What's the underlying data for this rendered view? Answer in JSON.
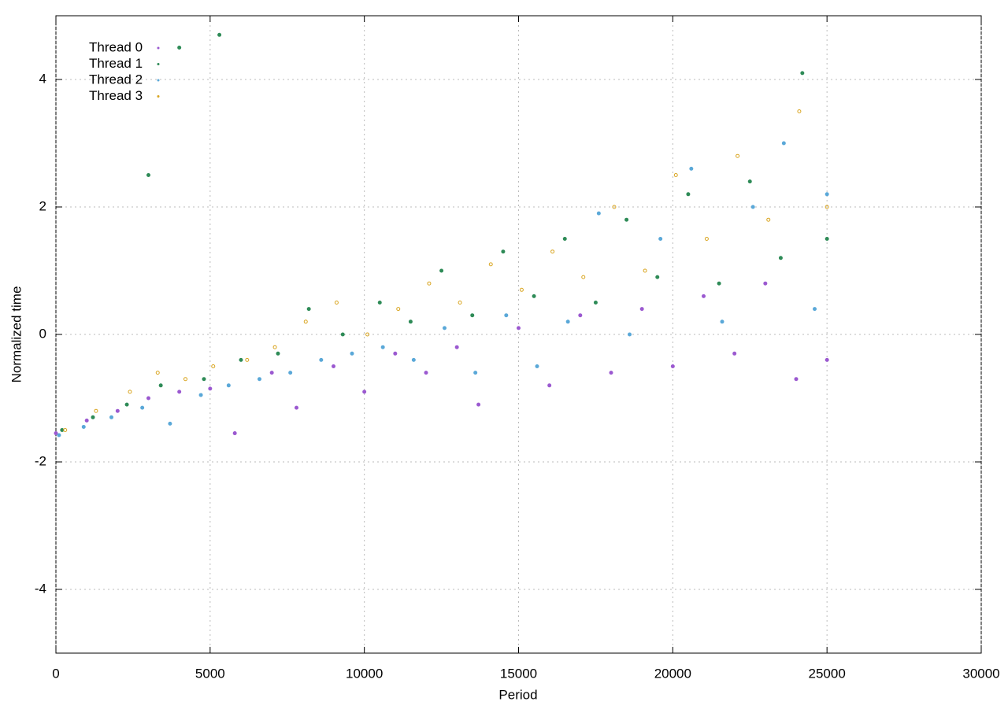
{
  "chart_data": {
    "type": "scatter",
    "xlabel": "Period",
    "ylabel": "Normalized time",
    "xlim": [
      0,
      30000
    ],
    "ylim": [
      -5,
      5
    ],
    "xticks": [
      0,
      5000,
      10000,
      15000,
      20000,
      25000,
      30000
    ],
    "yticks": [
      -4,
      -2,
      0,
      2,
      4
    ],
    "grid": true,
    "legend": "top-left",
    "series": [
      {
        "name": "Thread 0",
        "color": "#9b59d0",
        "x": [
          0,
          1000,
          2000,
          3000,
          4000,
          5000,
          5800,
          7000,
          7800,
          9000,
          10000,
          11000,
          12000,
          13000,
          13700,
          15000,
          16000,
          17000,
          18000,
          19000,
          20000,
          21000,
          22000,
          23000,
          24000,
          25000
        ],
        "values": [
          -1.55,
          -1.35,
          -1.2,
          -1.0,
          -0.9,
          -0.85,
          -1.55,
          -0.6,
          -1.15,
          -0.5,
          -0.9,
          -0.3,
          -0.6,
          -0.2,
          -1.1,
          0.1,
          -0.8,
          0.3,
          -0.6,
          0.4,
          -0.5,
          0.6,
          -0.3,
          0.8,
          -0.7,
          -0.4
        ]
      },
      {
        "name": "Thread 1",
        "color": "#2e8b57",
        "x": [
          200,
          1200,
          2300,
          3000,
          3400,
          4000,
          4800,
          5300,
          6000,
          7200,
          8200,
          9300,
          10500,
          11500,
          12500,
          13500,
          14500,
          15500,
          16500,
          17500,
          18500,
          19500,
          20500,
          21500,
          22500,
          23500,
          24200,
          25000
        ],
        "values": [
          -1.5,
          -1.3,
          -1.1,
          2.5,
          -0.8,
          4.5,
          -0.7,
          4.7,
          -0.4,
          -0.3,
          0.4,
          0.0,
          0.5,
          0.2,
          1.0,
          0.3,
          1.3,
          0.6,
          1.5,
          0.5,
          1.8,
          0.9,
          2.2,
          0.8,
          2.4,
          1.2,
          4.1,
          1.5
        ]
      },
      {
        "name": "Thread 2",
        "color": "#5aa8d8",
        "x": [
          100,
          900,
          1800,
          2800,
          3700,
          4700,
          5600,
          6600,
          7600,
          8600,
          9600,
          10600,
          11600,
          12600,
          13600,
          14600,
          15600,
          16600,
          17600,
          18600,
          19600,
          20600,
          21600,
          22600,
          23600,
          24600,
          25000
        ],
        "values": [
          -1.58,
          -1.45,
          -1.3,
          -1.15,
          -1.4,
          -0.95,
          -0.8,
          -0.7,
          -0.6,
          -0.4,
          -0.3,
          -0.2,
          -0.4,
          0.1,
          -0.6,
          0.3,
          -0.5,
          0.2,
          1.9,
          0.0,
          1.5,
          2.6,
          0.2,
          2.0,
          3.0,
          0.4,
          2.2
        ]
      },
      {
        "name": "Thread 3",
        "color": "#d9a520",
        "x": [
          300,
          1300,
          2400,
          3300,
          4200,
          5100,
          6200,
          7100,
          8100,
          9100,
          10100,
          11100,
          12100,
          13100,
          14100,
          15100,
          16100,
          17100,
          18100,
          19100,
          20100,
          21100,
          22100,
          23100,
          24100,
          25000
        ],
        "values": [
          -1.5,
          -1.2,
          -0.9,
          -0.6,
          -0.7,
          -0.5,
          -0.4,
          -0.2,
          0.2,
          0.5,
          0.0,
          0.4,
          0.8,
          0.5,
          1.1,
          0.7,
          1.3,
          0.9,
          2.0,
          1.0,
          2.5,
          1.5,
          2.8,
          1.8,
          3.5,
          2.0
        ]
      }
    ]
  }
}
